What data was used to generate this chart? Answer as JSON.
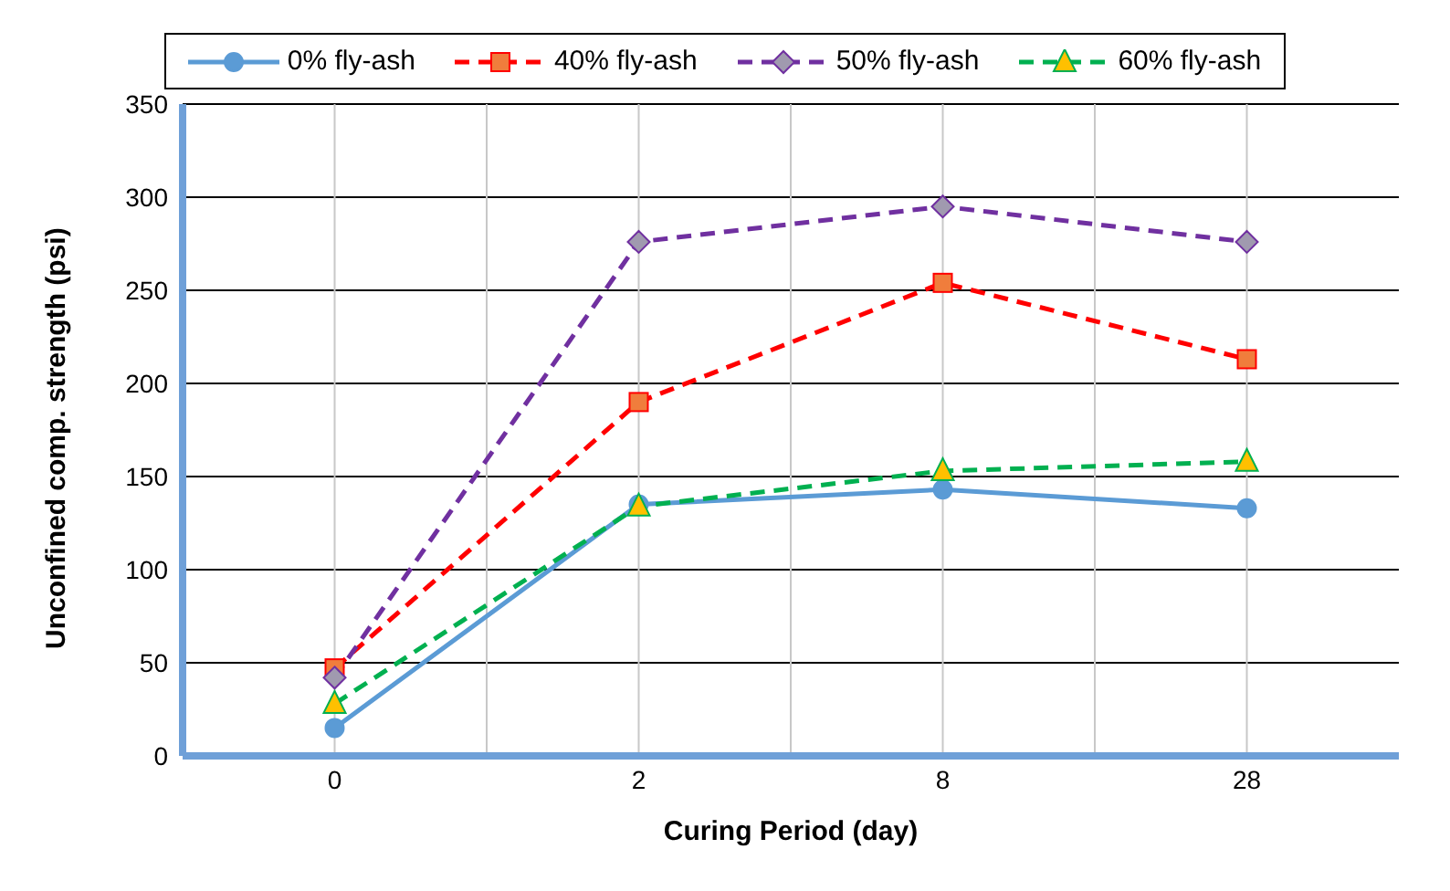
{
  "chart_data": {
    "type": "line",
    "xlabel": "Curing Period (day)",
    "ylabel": "Unconfined comp. strength (psi)",
    "categories": [
      "0",
      "2",
      "8",
      "28"
    ],
    "series": [
      {
        "name": "0% fly-ash",
        "color": "#5b9bd5",
        "marker": "circle",
        "line_style": "solid",
        "values": [
          15,
          135,
          143,
          133
        ]
      },
      {
        "name": "40% fly-ash",
        "color": "#ff0000",
        "marker": "square",
        "line_style": "dashed",
        "values": [
          47,
          190,
          254,
          213
        ]
      },
      {
        "name": "50% fly-ash",
        "color": "#7030a0",
        "marker": "diamond",
        "line_style": "dashed",
        "values": [
          42,
          276,
          295,
          276
        ]
      },
      {
        "name": "60% fly-ash",
        "color": "#00b050",
        "marker": "triangle",
        "line_style": "dashed",
        "values": [
          28,
          134,
          153,
          158
        ]
      }
    ],
    "ylim": [
      0,
      350
    ],
    "yticks": [
      0,
      50,
      100,
      150,
      200,
      250,
      300,
      350
    ],
    "grid": true,
    "legend": "top"
  }
}
